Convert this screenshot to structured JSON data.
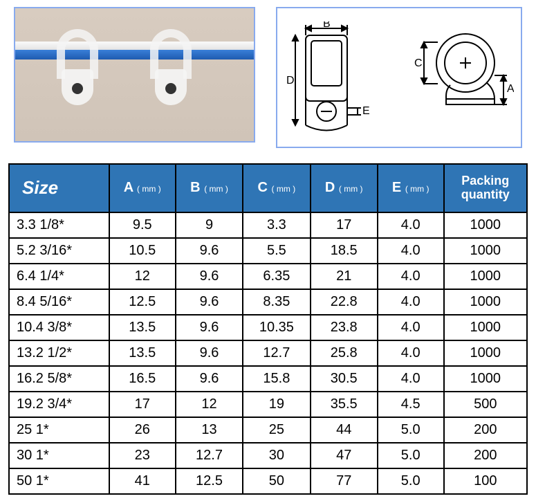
{
  "table": {
    "headers": {
      "size": "Size",
      "a": "A",
      "b": "B",
      "c": "C",
      "d": "D",
      "e": "E",
      "unit": "( mm )",
      "packing1": "Packing",
      "packing2": "quantity"
    },
    "rows": [
      {
        "size": "3.3 1/8*",
        "a": "9.5",
        "b": "9",
        "c": "3.3",
        "d": "17",
        "e": "4.0",
        "q": "1000"
      },
      {
        "size": "5.2 3/16*",
        "a": "10.5",
        "b": "9.6",
        "c": "5.5",
        "d": "18.5",
        "e": "4.0",
        "q": "1000"
      },
      {
        "size": "6.4 1/4*",
        "a": "12",
        "b": "9.6",
        "c": "6.35",
        "d": "21",
        "e": "4.0",
        "q": "1000"
      },
      {
        "size": "8.4 5/16*",
        "a": "12.5",
        "b": "9.6",
        "c": "8.35",
        "d": "22.8",
        "e": "4.0",
        "q": "1000"
      },
      {
        "size": "10.4 3/8*",
        "a": "13.5",
        "b": "9.6",
        "c": "10.35",
        "d": "23.8",
        "e": "4.0",
        "q": "1000"
      },
      {
        "size": "13.2 1/2*",
        "a": "13.5",
        "b": "9.6",
        "c": "12.7",
        "d": "25.8",
        "e": "4.0",
        "q": "1000"
      },
      {
        "size": "16.2 5/8*",
        "a": "16.5",
        "b": "9.6",
        "c": "15.8",
        "d": "30.5",
        "e": "4.0",
        "q": "1000"
      },
      {
        "size": "19.2 3/4*",
        "a": "17",
        "b": "12",
        "c": "19",
        "d": "35.5",
        "e": "4.5",
        "q": "500"
      },
      {
        "size": "25 1*",
        "a": "26",
        "b": "13",
        "c": "25",
        "d": "44",
        "e": "5.0",
        "q": "200"
      },
      {
        "size": "30 1*",
        "a": "23",
        "b": "12.7",
        "c": "30",
        "d": "47",
        "e": "5.0",
        "q": "200"
      },
      {
        "size": "50 1*",
        "a": "41",
        "b": "12.5",
        "c": "50",
        "d": "77",
        "e": "5.0",
        "q": "100"
      }
    ]
  },
  "diagram_labels": {
    "A": "A",
    "B": "B",
    "C": "C",
    "D": "D",
    "E": "E"
  },
  "colors": {
    "header_bg": "#2f75b5",
    "header_text": "#ffffff",
    "border": "#000000",
    "accent_border": "#88aaee"
  }
}
